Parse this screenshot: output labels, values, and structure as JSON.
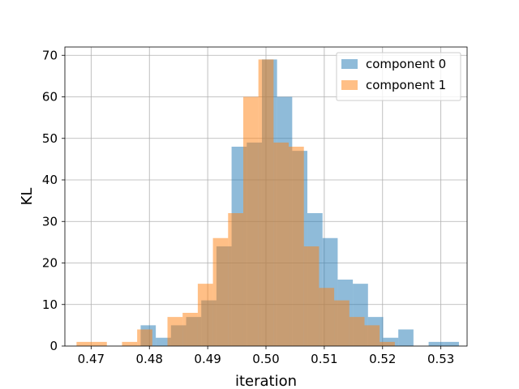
{
  "chart_data": {
    "type": "histogram",
    "xlabel": "iteration",
    "ylabel": "KL",
    "xlim": [
      0.4655,
      0.5345
    ],
    "ylim": [
      0,
      72
    ],
    "x_ticks": [
      0.47,
      0.48,
      0.49,
      0.5,
      0.51,
      0.52,
      0.53
    ],
    "x_tick_labels": [
      "0.47",
      "0.48",
      "0.49",
      "0.50",
      "0.51",
      "0.52",
      "0.53"
    ],
    "y_ticks": [
      0,
      10,
      20,
      30,
      40,
      50,
      60,
      70
    ],
    "y_tick_labels": [
      "0",
      "10",
      "20",
      "30",
      "40",
      "50",
      "60",
      "70"
    ],
    "grid": true,
    "legend_position": "top-right",
    "series": [
      {
        "name": "component 0",
        "color": "#1f77b4",
        "alpha": 0.5,
        "bins": [
          {
            "x0": 0.4785,
            "x1": 0.4811,
            "count": 5
          },
          {
            "x0": 0.4811,
            "x1": 0.4837,
            "count": 2
          },
          {
            "x0": 0.4837,
            "x1": 0.4863,
            "count": 5
          },
          {
            "x0": 0.4863,
            "x1": 0.4889,
            "count": 7
          },
          {
            "x0": 0.4889,
            "x1": 0.4915,
            "count": 11
          },
          {
            "x0": 0.4915,
            "x1": 0.4941,
            "count": 24
          },
          {
            "x0": 0.4941,
            "x1": 0.4967,
            "count": 48
          },
          {
            "x0": 0.4967,
            "x1": 0.4993,
            "count": 49
          },
          {
            "x0": 0.4993,
            "x1": 0.5019,
            "count": 69
          },
          {
            "x0": 0.5019,
            "x1": 0.5045,
            "count": 60
          },
          {
            "x0": 0.5045,
            "x1": 0.5071,
            "count": 47
          },
          {
            "x0": 0.5071,
            "x1": 0.5097,
            "count": 32
          },
          {
            "x0": 0.5097,
            "x1": 0.5123,
            "count": 26
          },
          {
            "x0": 0.5123,
            "x1": 0.5149,
            "count": 16
          },
          {
            "x0": 0.5149,
            "x1": 0.5175,
            "count": 15
          },
          {
            "x0": 0.5175,
            "x1": 0.5201,
            "count": 7
          },
          {
            "x0": 0.5201,
            "x1": 0.5227,
            "count": 2
          },
          {
            "x0": 0.5227,
            "x1": 0.5253,
            "count": 4
          },
          {
            "x0": 0.5253,
            "x1": 0.5279,
            "count": 0
          },
          {
            "x0": 0.5279,
            "x1": 0.5305,
            "count": 1
          },
          {
            "x0": 0.5305,
            "x1": 0.5331,
            "count": 1
          }
        ]
      },
      {
        "name": "component 1",
        "color": "#ff7f0e",
        "alpha": 0.5,
        "bins": [
          {
            "x0": 0.4675,
            "x1": 0.4701,
            "count": 1
          },
          {
            "x0": 0.4701,
            "x1": 0.4727,
            "count": 1
          },
          {
            "x0": 0.4727,
            "x1": 0.4753,
            "count": 0
          },
          {
            "x0": 0.4753,
            "x1": 0.4779,
            "count": 1
          },
          {
            "x0": 0.4779,
            "x1": 0.4805,
            "count": 4
          },
          {
            "x0": 0.4805,
            "x1": 0.4831,
            "count": 0
          },
          {
            "x0": 0.4831,
            "x1": 0.4857,
            "count": 7
          },
          {
            "x0": 0.4857,
            "x1": 0.4883,
            "count": 8
          },
          {
            "x0": 0.4883,
            "x1": 0.4909,
            "count": 15
          },
          {
            "x0": 0.4909,
            "x1": 0.4935,
            "count": 26
          },
          {
            "x0": 0.4935,
            "x1": 0.4961,
            "count": 32
          },
          {
            "x0": 0.4961,
            "x1": 0.4987,
            "count": 60
          },
          {
            "x0": 0.4987,
            "x1": 0.5013,
            "count": 69
          },
          {
            "x0": 0.5013,
            "x1": 0.5039,
            "count": 49
          },
          {
            "x0": 0.5039,
            "x1": 0.5065,
            "count": 48
          },
          {
            "x0": 0.5065,
            "x1": 0.5091,
            "count": 24
          },
          {
            "x0": 0.5091,
            "x1": 0.5117,
            "count": 14
          },
          {
            "x0": 0.5117,
            "x1": 0.5143,
            "count": 11
          },
          {
            "x0": 0.5143,
            "x1": 0.5169,
            "count": 7
          },
          {
            "x0": 0.5169,
            "x1": 0.5195,
            "count": 5
          },
          {
            "x0": 0.5195,
            "x1": 0.5221,
            "count": 1
          }
        ]
      }
    ]
  }
}
